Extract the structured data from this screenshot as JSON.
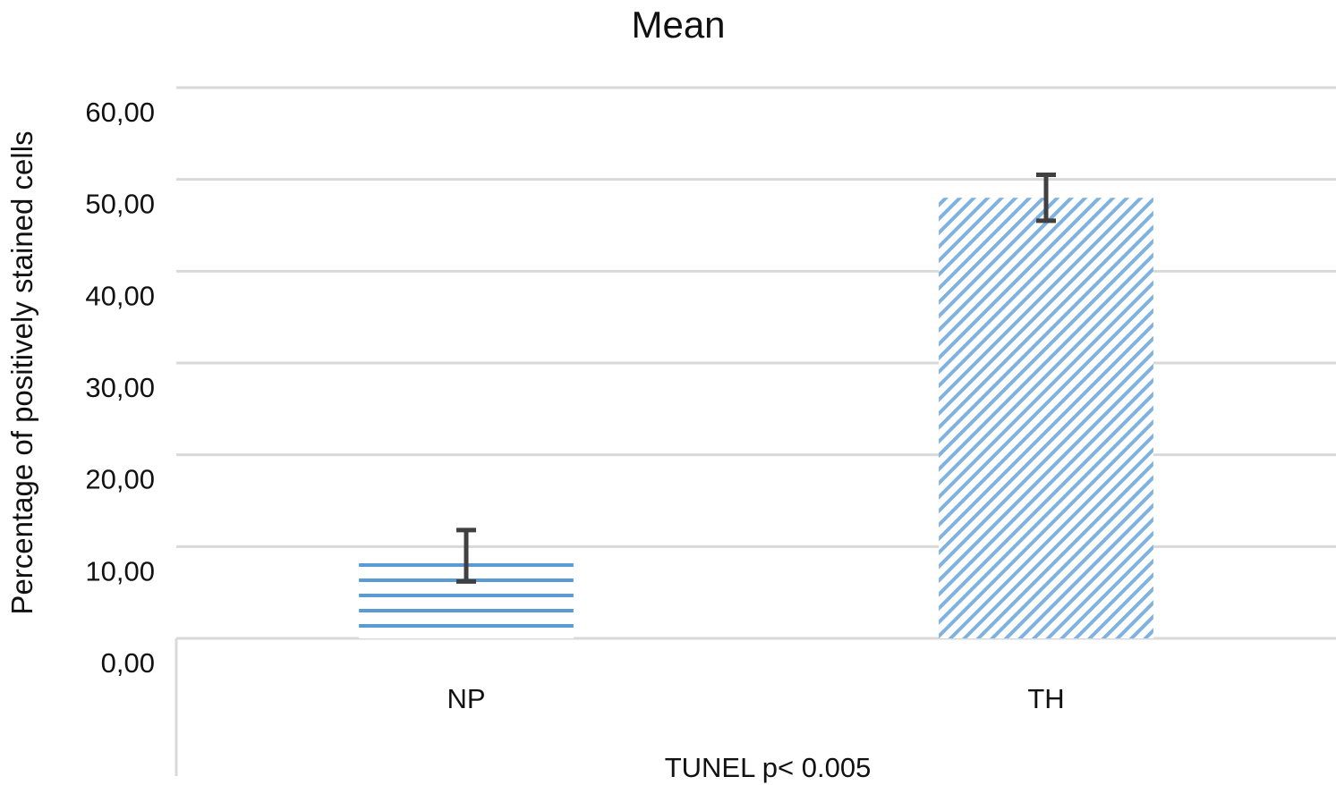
{
  "chart_data": {
    "type": "bar",
    "title": "Mean",
    "xlabel": "TUNEL p< 0.005",
    "ylabel": "Percentage of positively stained cells",
    "categories": [
      "NP",
      "TH"
    ],
    "series": [
      {
        "values": [
          9.0,
          48.0
        ],
        "error": [
          2.8,
          2.5
        ],
        "patterns": [
          "horizontal-stripes",
          "diagonal-hatch"
        ],
        "color": "#5b9bd5"
      }
    ],
    "ylim": [
      0,
      60
    ],
    "yticks": [
      "0,00",
      "10,00",
      "20,00",
      "30,00",
      "40,00",
      "50,00",
      "60,00"
    ],
    "grid": true,
    "legend": "none",
    "colors": {
      "bar": "#5b9bd5",
      "grid": "#d9d9d9",
      "error_bar": "#404040",
      "text": "#111111"
    }
  }
}
